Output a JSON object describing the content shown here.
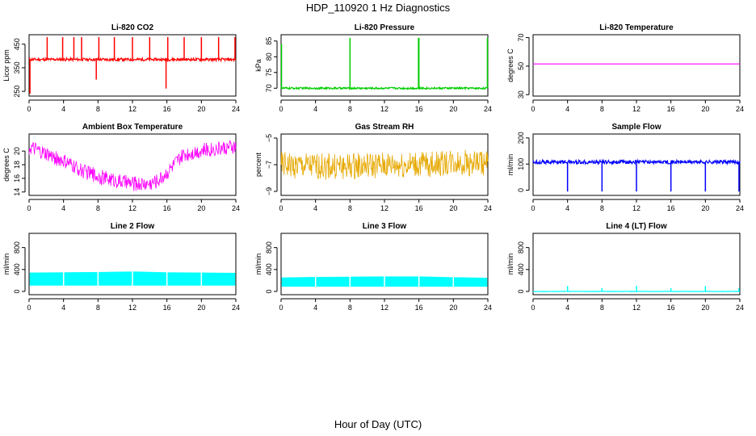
{
  "figure": {
    "title": "HDP_110920  1 Hz Diagnostics",
    "xlabel": "Hour of Day (UTC)"
  },
  "chart_data": [
    {
      "id": "co2",
      "type": "line",
      "title": "Li-820 CO2",
      "ylabel": "Licor ppm",
      "xlim": [
        0,
        24
      ],
      "xticks": [
        0,
        4,
        8,
        12,
        16,
        20,
        24
      ],
      "ylim": [
        230,
        490
      ],
      "yticks": [
        250,
        350,
        450
      ],
      "color": "#ff0000",
      "baseline": 385,
      "noise": 6,
      "spikes": [
        {
          "x": 0.1,
          "y": 240
        },
        {
          "x": 2.1,
          "y": 480
        },
        {
          "x": 3.9,
          "y": 480
        },
        {
          "x": 5.2,
          "y": 480
        },
        {
          "x": 6.1,
          "y": 480
        },
        {
          "x": 7.8,
          "y": 300
        },
        {
          "x": 8.1,
          "y": 480
        },
        {
          "x": 9.9,
          "y": 480
        },
        {
          "x": 12.0,
          "y": 480
        },
        {
          "x": 14.0,
          "y": 480
        },
        {
          "x": 15.9,
          "y": 262
        },
        {
          "x": 16.1,
          "y": 480
        },
        {
          "x": 18.0,
          "y": 480
        },
        {
          "x": 20.0,
          "y": 480
        },
        {
          "x": 22.0,
          "y": 480
        },
        {
          "x": 23.9,
          "y": 480
        }
      ]
    },
    {
      "id": "pressure",
      "type": "line",
      "title": "Li-820 Pressure",
      "ylabel": "kPa",
      "xlim": [
        0,
        24
      ],
      "xticks": [
        0,
        4,
        8,
        12,
        16,
        20,
        24
      ],
      "ylim": [
        67.5,
        87
      ],
      "yticks": [
        70,
        75,
        80,
        85
      ],
      "color": "#00cc00",
      "baseline": 70,
      "noise": 0.3,
      "spikes": [
        {
          "x": 0.05,
          "y": 84
        },
        {
          "x": 8.0,
          "y": 86
        },
        {
          "x": 15.95,
          "y": 86
        },
        {
          "x": 16.0,
          "y": 86
        },
        {
          "x": 23.95,
          "y": 86
        }
      ]
    },
    {
      "id": "temp",
      "type": "line",
      "title": "Li-820 Temperature",
      "ylabel": "degrees C",
      "xlim": [
        0,
        24
      ],
      "xticks": [
        0,
        4,
        8,
        12,
        16,
        20,
        24
      ],
      "ylim": [
        29,
        72
      ],
      "yticks": [
        30,
        50,
        70
      ],
      "color": "#ff00ff",
      "baseline": 51.5,
      "noise": 0,
      "spikes": []
    },
    {
      "id": "ambient",
      "type": "line",
      "title": "Ambient Box Temperature",
      "ylabel": "degrees C",
      "xlim": [
        0,
        24
      ],
      "xticks": [
        0,
        4,
        8,
        12,
        16,
        20,
        24
      ],
      "ylim": [
        13.5,
        22.5
      ],
      "yticks": [
        14,
        16,
        18,
        20
      ],
      "color": "#ff00ff",
      "profile": [
        [
          0,
          20.5
        ],
        [
          2,
          19.5
        ],
        [
          4,
          18.5
        ],
        [
          6,
          17.2
        ],
        [
          8,
          16.3
        ],
        [
          10,
          15.7
        ],
        [
          12,
          15.2
        ],
        [
          14,
          15.2
        ],
        [
          15,
          15.7
        ],
        [
          16,
          16.8
        ],
        [
          17,
          18.2
        ],
        [
          18,
          19.5
        ],
        [
          20,
          20.1
        ],
        [
          22,
          20.4
        ],
        [
          24,
          20.6
        ]
      ],
      "noise": 1.1
    },
    {
      "id": "rh",
      "type": "line",
      "title": "Gas Stream RH",
      "ylabel": "percent",
      "xlim": [
        0,
        24
      ],
      "xticks": [
        0,
        4,
        8,
        12,
        16,
        20,
        24
      ],
      "ylim": [
        -9.3,
        -4.7
      ],
      "yticks": [
        -9,
        -7,
        -5
      ],
      "color": "#e6a800",
      "profile": [
        [
          0,
          -7.0
        ],
        [
          4,
          -7.15
        ],
        [
          8,
          -7.1
        ],
        [
          12,
          -7.05
        ],
        [
          16,
          -7.0
        ],
        [
          20,
          -6.8
        ],
        [
          24,
          -6.9
        ]
      ],
      "noise": 1.0
    },
    {
      "id": "sample",
      "type": "line",
      "title": "Sample Flow",
      "ylabel": "ml/min",
      "xlim": [
        0,
        24
      ],
      "xticks": [
        0,
        4,
        8,
        12,
        16,
        20,
        24
      ],
      "ylim": [
        -20,
        215
      ],
      "yticks": [
        0,
        100,
        200
      ],
      "color": "#0000ff",
      "baseline": 108,
      "noise": 7,
      "spikes": [
        {
          "x": 4.0,
          "y": -5
        },
        {
          "x": 8.0,
          "y": -5
        },
        {
          "x": 12.0,
          "y": -5
        },
        {
          "x": 16.0,
          "y": -5
        },
        {
          "x": 20.0,
          "y": -5
        },
        {
          "x": 23.9,
          "y": -5
        }
      ]
    },
    {
      "id": "line2",
      "type": "band",
      "title": "Line 2 Flow",
      "ylabel": "ml/min",
      "xlim": [
        0,
        24
      ],
      "xticks": [
        0,
        4,
        8,
        12,
        16,
        20,
        24
      ],
      "ylim": [
        -60,
        1060
      ],
      "yticks": [
        0,
        400,
        800
      ],
      "color": "#00ffff",
      "band": [
        [
          0,
          110,
          340
        ],
        [
          4,
          110,
          345
        ],
        [
          8,
          110,
          350
        ],
        [
          12,
          110,
          360
        ],
        [
          16,
          110,
          345
        ],
        [
          20,
          110,
          340
        ],
        [
          24,
          110,
          335
        ]
      ]
    },
    {
      "id": "line3",
      "type": "band",
      "title": "Line 3 Flow",
      "ylabel": "ml/min",
      "xlim": [
        0,
        24
      ],
      "xticks": [
        0,
        4,
        8,
        12,
        16,
        20,
        24
      ],
      "ylim": [
        -60,
        1060
      ],
      "yticks": [
        0,
        400,
        800
      ],
      "color": "#00ffff",
      "band": [
        [
          0,
          90,
          250
        ],
        [
          4,
          90,
          260
        ],
        [
          8,
          90,
          265
        ],
        [
          12,
          90,
          270
        ],
        [
          16,
          90,
          270
        ],
        [
          20,
          90,
          255
        ],
        [
          24,
          90,
          245
        ]
      ]
    },
    {
      "id": "line4",
      "type": "line",
      "title": "Line 4 (LT) Flow",
      "ylabel": "ml/min",
      "xlim": [
        0,
        24
      ],
      "xticks": [
        0,
        4,
        8,
        12,
        16,
        20,
        24
      ],
      "ylim": [
        -60,
        1060
      ],
      "yticks": [
        0,
        400,
        800
      ],
      "color": "#00ffff",
      "baseline": 0,
      "noise": 4,
      "spikes": [
        {
          "x": 4.0,
          "y": 100
        },
        {
          "x": 8.0,
          "y": 60
        },
        {
          "x": 12.0,
          "y": 100
        },
        {
          "x": 16.0,
          "y": 60
        },
        {
          "x": 20.0,
          "y": 100
        },
        {
          "x": 23.9,
          "y": 60
        }
      ]
    }
  ]
}
